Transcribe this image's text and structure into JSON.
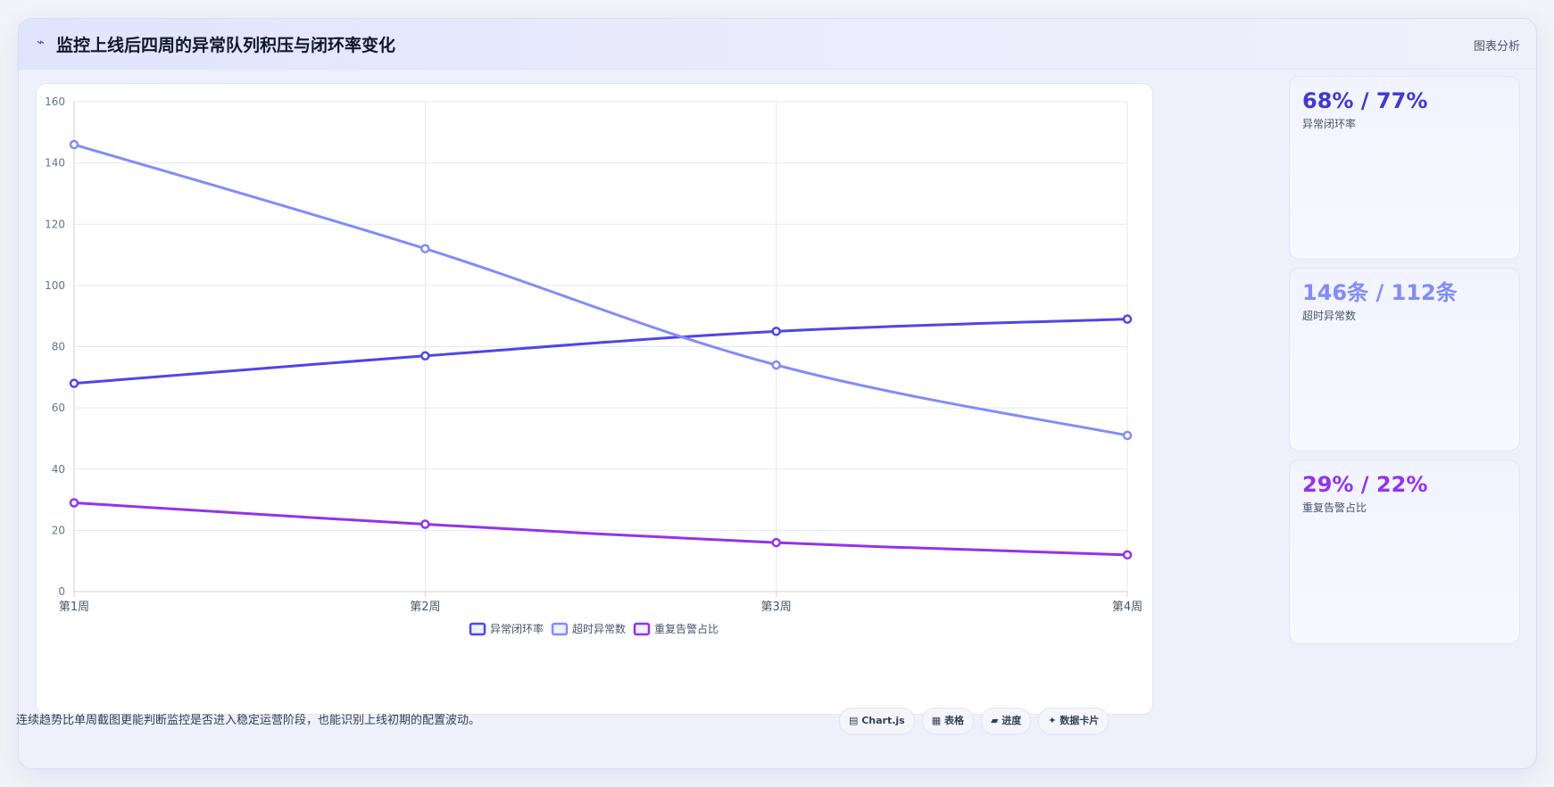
{
  "header": {
    "icon": "pulse-icon",
    "title": "监控上线后四周的异常队列积压与闭环率变化",
    "action_label": "图表分析"
  },
  "chart_data": {
    "type": "line",
    "categories": [
      "第1周",
      "第2周",
      "第3周",
      "第4周"
    ],
    "ylim": [
      0,
      160
    ],
    "yticks": [
      0,
      20,
      40,
      60,
      80,
      100,
      120,
      140,
      160
    ],
    "grid": true,
    "legend": "bottom",
    "series": [
      {
        "name": "异常闭环率",
        "values": [
          68,
          77,
          85,
          89
        ],
        "color": "#4f46e5"
      },
      {
        "name": "超时异常数",
        "values": [
          146,
          112,
          74,
          51
        ],
        "color": "#818cf8"
      },
      {
        "name": "重复告警占比",
        "values": [
          29,
          22,
          16,
          12
        ],
        "color": "#9333ea"
      }
    ]
  },
  "stats": [
    {
      "value": "68% / 77%",
      "label": "异常闭环率",
      "color": "#4338ca"
    },
    {
      "value": "146条 / 112条",
      "label": "超时异常数",
      "color": "#818cf8"
    },
    {
      "value": "29% / 22%",
      "label": "重复告警占比",
      "color": "#9333ea"
    }
  ],
  "footer": {
    "note": "连续趋势比单周截图更能判断监控是否进入稳定运营阶段，也能识别上线初期的配置波动。",
    "chips": [
      {
        "label": "▤ Chart.js",
        "icon": "chart-icon"
      },
      {
        "label": "▦ 表格",
        "icon": "table-icon"
      },
      {
        "label": "▰ 进度",
        "icon": "progress-icon"
      },
      {
        "label": "✦ 数据卡片",
        "icon": "sparkle-icon"
      }
    ]
  }
}
